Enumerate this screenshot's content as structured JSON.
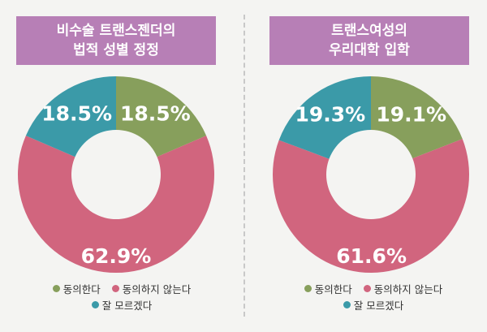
{
  "colors": {
    "agree": "#879f5c",
    "disagree": "#d1657e",
    "unknown": "#3b9aa8",
    "title_bg": "#b77fb6"
  },
  "legend": [
    "동의한다",
    "동의하지 않는다",
    "잘 모르겠다"
  ],
  "chart_data": [
    {
      "type": "pie",
      "title_lines": [
        "비수술 트랜스젠더의",
        "법적 성별 정정"
      ],
      "categories": [
        "동의한다",
        "동의하지 않는다",
        "잘 모르겠다"
      ],
      "values": [
        18.5,
        62.9,
        18.5
      ],
      "labels": [
        "18.5%",
        "62.9%",
        "18.5%"
      ]
    },
    {
      "type": "pie",
      "title_lines": [
        "트랜스여성의",
        "우리대학 입학"
      ],
      "categories": [
        "동의한다",
        "동의하지 않는다",
        "잘 모르겠다"
      ],
      "values": [
        19.1,
        61.6,
        19.3
      ],
      "labels": [
        "19.1%",
        "61.6%",
        "19.3%"
      ]
    }
  ]
}
